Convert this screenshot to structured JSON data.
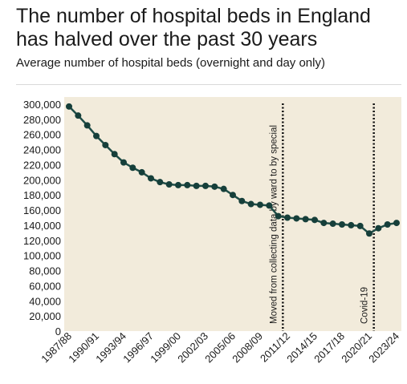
{
  "chart_data": {
    "type": "line",
    "title": "The number of hospital beds in England has halved over the past 30 years",
    "subtitle": "Average number of hospital beds (overnight and day only)",
    "xlabel": "",
    "ylabel": "",
    "ylim": [
      0,
      300000
    ],
    "y_ticks": [
      0,
      20000,
      40000,
      60000,
      80000,
      100000,
      120000,
      140000,
      160000,
      180000,
      200000,
      220000,
      240000,
      260000,
      280000,
      300000
    ],
    "y_tick_labels": [
      "0",
      "20,000",
      "40,000",
      "60,000",
      "80,000",
      "100,000",
      "120,000",
      "140,000",
      "160,000",
      "180,000",
      "200,000",
      "220,000",
      "240,000",
      "260,000",
      "280,000",
      "300,000"
    ],
    "x_tick_labels": [
      "1987/88",
      "1990/91",
      "1993/94",
      "1996/97",
      "1999/00",
      "2002/03",
      "2005/06",
      "2008/09",
      "2011/12",
      "2014/15",
      "2017/18",
      "2020/21",
      "2023/24"
    ],
    "x_tick_every": 3,
    "categories": [
      "1987/88",
      "1988/89",
      "1989/90",
      "1990/91",
      "1991/92",
      "1992/93",
      "1993/94",
      "1994/95",
      "1995/96",
      "1996/97",
      "1997/98",
      "1998/99",
      "1999/00",
      "2000/01",
      "2001/02",
      "2002/03",
      "2003/04",
      "2004/05",
      "2005/06",
      "2006/07",
      "2007/08",
      "2008/09",
      "2009/10",
      "2010/11",
      "2011/12",
      "2012/13",
      "2013/14",
      "2014/15",
      "2015/16",
      "2016/17",
      "2017/18",
      "2018/19",
      "2019/20",
      "2020/21",
      "2021/22",
      "2022/23",
      "2023/24"
    ],
    "values": [
      297000,
      285000,
      272000,
      258000,
      246000,
      234000,
      223000,
      216000,
      210000,
      202000,
      197000,
      194000,
      193000,
      193000,
      192000,
      192000,
      191000,
      188000,
      180000,
      172000,
      168000,
      167000,
      166000,
      152000,
      150000,
      149000,
      148000,
      147000,
      143000,
      142000,
      141000,
      140000,
      139000,
      129000,
      136000,
      141000,
      143000
    ],
    "annotations": [
      {
        "at": "2010/11",
        "label": "Moved from collecting data by ward to by special"
      },
      {
        "at": "2020/21",
        "label": "Covid-19"
      }
    ],
    "grid": false,
    "colors": {
      "plot_background": "#f2ebdb",
      "line": "#1f4d47",
      "marker": "#163f3a",
      "annotation_line": "#111111",
      "text": "#1a1a1a"
    }
  }
}
